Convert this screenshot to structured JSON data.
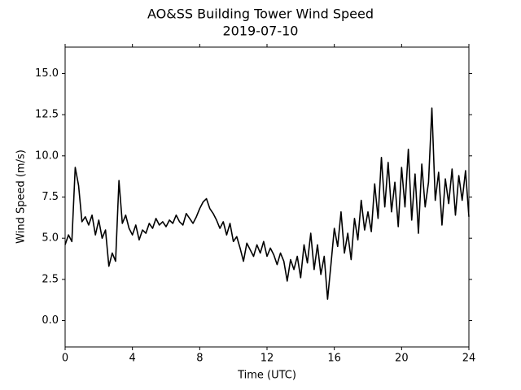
{
  "chart_data": {
    "type": "line",
    "title": "AO&SS Building Tower Wind Speed",
    "subtitle": "2019-07-10",
    "x_label": "Time (UTC)",
    "y_label": "Wind Speed (m/s)",
    "color": "#000000",
    "x": [
      0,
      0.2,
      0.4,
      0.6,
      0.8,
      1,
      1.2,
      1.4,
      1.6,
      1.8,
      2,
      2.2,
      2.4,
      2.6,
      2.8,
      3,
      3.2,
      3.4,
      3.6,
      3.8,
      4,
      4.2,
      4.4,
      4.6,
      4.8,
      5,
      5.2,
      5.4,
      5.6,
      5.8,
      6,
      6.2,
      6.4,
      6.6,
      6.8,
      7,
      7.2,
      7.4,
      7.6,
      7.8,
      8,
      8.2,
      8.4,
      8.6,
      8.8,
      9,
      9.2,
      9.4,
      9.6,
      9.8,
      10,
      10.2,
      10.4,
      10.6,
      10.8,
      11,
      11.2,
      11.4,
      11.6,
      11.8,
      12,
      12.2,
      12.4,
      12.6,
      12.8,
      13,
      13.2,
      13.4,
      13.6,
      13.8,
      14,
      14.2,
      14.4,
      14.6,
      14.8,
      15,
      15.2,
      15.4,
      15.6,
      15.8,
      16,
      16.2,
      16.4,
      16.6,
      16.8,
      17,
      17.2,
      17.4,
      17.6,
      17.8,
      18,
      18.2,
      18.4,
      18.6,
      18.8,
      19,
      19.2,
      19.4,
      19.6,
      19.8,
      20,
      20.2,
      20.4,
      20.6,
      20.8,
      21,
      21.2,
      21.4,
      21.6,
      21.8,
      22,
      22.2,
      22.4,
      22.6,
      22.8,
      23,
      23.2,
      23.4,
      23.6,
      23.8,
      24
    ],
    "values": [
      4.6,
      5.2,
      4.8,
      9.3,
      8.2,
      6.0,
      6.3,
      5.8,
      6.4,
      5.2,
      6.1,
      5.0,
      5.5,
      3.3,
      4.1,
      3.6,
      8.5,
      5.9,
      6.4,
      5.6,
      5.2,
      5.8,
      4.9,
      5.5,
      5.3,
      5.9,
      5.6,
      6.2,
      5.8,
      6.0,
      5.7,
      6.1,
      5.9,
      6.4,
      6.0,
      5.8,
      6.5,
      6.2,
      5.9,
      6.3,
      6.8,
      7.2,
      7.4,
      6.8,
      6.5,
      6.1,
      5.6,
      6.0,
      5.2,
      5.9,
      4.8,
      5.1,
      4.4,
      3.6,
      4.7,
      4.3,
      3.9,
      4.6,
      4.1,
      4.8,
      3.9,
      4.4,
      4.0,
      3.4,
      4.1,
      3.6,
      2.4,
      3.7,
      3.1,
      3.9,
      2.6,
      4.6,
      3.5,
      5.3,
      3.1,
      4.6,
      2.8,
      3.9,
      1.3,
      3.4,
      5.6,
      4.5,
      6.6,
      4.1,
      5.3,
      3.7,
      6.2,
      4.9,
      7.3,
      5.5,
      6.6,
      5.4,
      8.3,
      6.2,
      9.9,
      6.9,
      9.6,
      6.6,
      8.4,
      5.7,
      9.3,
      6.9,
      10.4,
      6.1,
      8.9,
      5.3,
      9.5,
      6.9,
      8.4,
      12.9,
      7.3,
      9.0,
      5.8,
      8.6,
      7.1,
      9.2,
      6.4,
      8.8,
      7.3,
      9.1,
      6.3
    ],
    "xlim": [
      0,
      24
    ],
    "xticks": [
      0,
      4,
      8,
      12,
      16,
      20,
      24
    ],
    "ylim": [
      -1.6,
      16.6
    ],
    "yticks": [
      {
        "value": 0,
        "label": "0.0"
      },
      2.5,
      {
        "value": 5,
        "label": "5.0"
      },
      7.5,
      {
        "value": 10,
        "label": "10.0"
      },
      12.5,
      {
        "value": 15,
        "label": "15.0"
      }
    ]
  }
}
